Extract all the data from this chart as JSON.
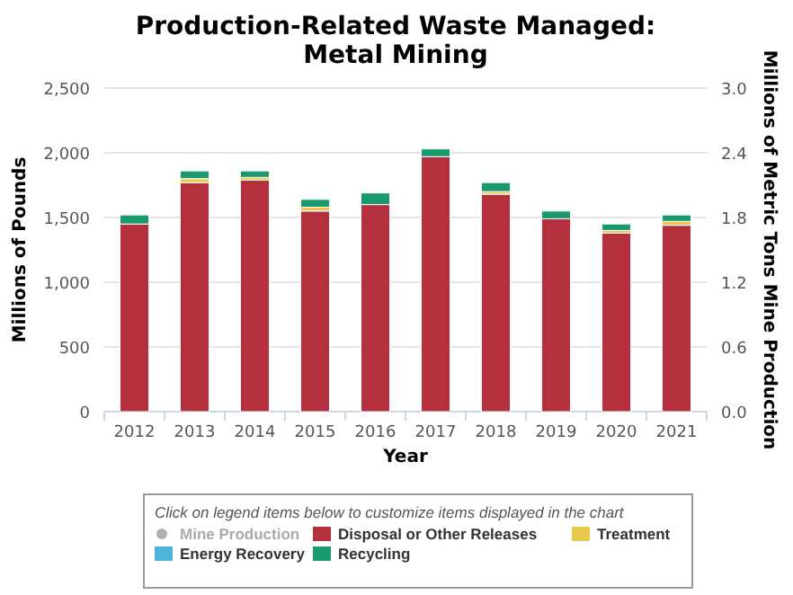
{
  "chart_data": {
    "type": "bar",
    "title": "Production-Related Waste Managed: Metal Mining",
    "xlabel": "Year",
    "ylabel": "Millions of Pounds",
    "y2label": "Millions of Metric Tons Mine Production",
    "legend_title": "Click on legend items below to customize items displayed in the chart",
    "categories": [
      "2012",
      "2013",
      "2014",
      "2015",
      "2016",
      "2017",
      "2018",
      "2019",
      "2020",
      "2021"
    ],
    "stacked": true,
    "grid": "y",
    "legend": "bottom",
    "ylim": [
      0,
      2500
    ],
    "yticks": [
      0,
      {
        "value": 500,
        "label": "500"
      },
      {
        "value": 1000,
        "label": "1,000"
      },
      {
        "value": 1500,
        "label": "1,500"
      },
      {
        "value": 2000,
        "label": "2,000"
      },
      {
        "value": 2500,
        "label": "2,500"
      }
    ],
    "y2lim": [
      0,
      3
    ],
    "y2ticks": [
      {
        "value": 0,
        "label": "0.0"
      },
      {
        "value": 0.6,
        "label": "0.6"
      },
      {
        "value": 1.2,
        "label": "1.2"
      },
      {
        "value": 1.8,
        "label": "1.8"
      },
      {
        "value": 2.4,
        "label": "2.4"
      },
      {
        "value": 3,
        "label": "3.0"
      }
    ],
    "series": [
      {
        "name": "Mine Production",
        "type": "line",
        "color": "#b0b0b0",
        "values": [
          null,
          null,
          null,
          null,
          null,
          null,
          null,
          null,
          null,
          null
        ]
      },
      {
        "name": "Disposal or Other Releases",
        "color": "#b5303f",
        "values": [
          1450,
          1770,
          1790,
          1550,
          1600,
          1970,
          1680,
          1490,
          1380,
          1440
        ]
      },
      {
        "name": "Treatment",
        "color": "#e8c84a",
        "values": [
          null,
          30,
          20,
          30,
          null,
          null,
          20,
          null,
          20,
          30
        ]
      },
      {
        "name": "Energy Recovery",
        "color": "#4fb3d9",
        "values": [
          null,
          null,
          null,
          null,
          null,
          null,
          null,
          null,
          null,
          null
        ]
      },
      {
        "name": "Recycling",
        "color": "#1a9a6c",
        "values": [
          70,
          60,
          50,
          60,
          90,
          60,
          70,
          60,
          50,
          50
        ]
      }
    ]
  }
}
